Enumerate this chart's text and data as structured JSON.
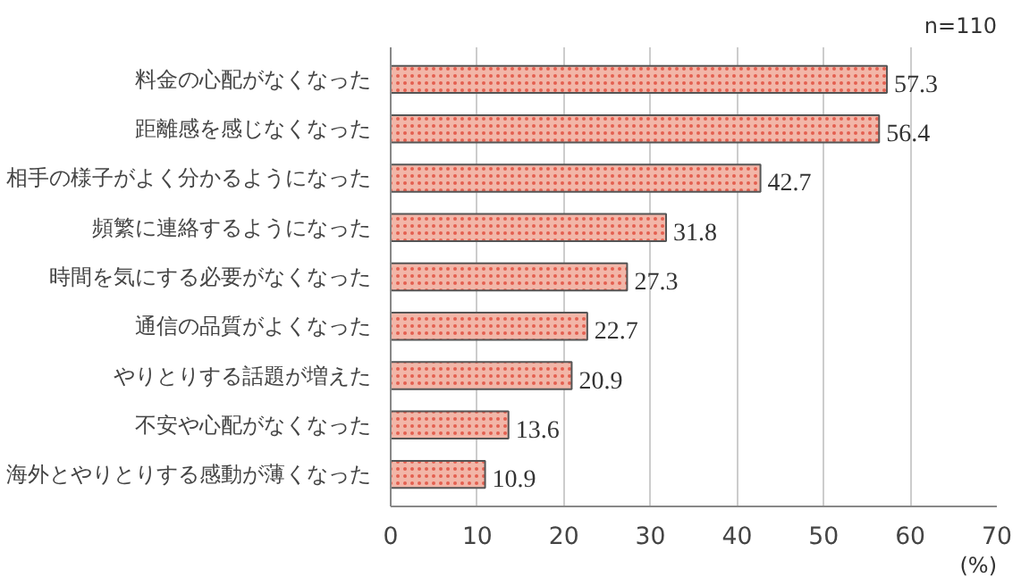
{
  "chart_data": {
    "type": "bar",
    "orientation": "horizontal",
    "categories": [
      "料金の心配がなくなった",
      "距離感を感じなくなった",
      "相手の様子がよく分かるようになった",
      "頻繁に連絡するようになった",
      "時間を気にする必要がなくなった",
      "通信の品質がよくなった",
      "やりとりする話題が増えた",
      "不安や心配がなくなった",
      "海外とやりとりする感動が薄くなった"
    ],
    "values": [
      57.3,
      56.4,
      42.7,
      31.8,
      27.3,
      22.7,
      20.9,
      13.6,
      10.9
    ],
    "color": "#f2b6a8",
    "data_labels": true,
    "xlim": [
      0,
      70
    ],
    "xticks": [
      0,
      10,
      20,
      30,
      40,
      50,
      60,
      70
    ],
    "xlabel": "(%)",
    "annotations": [
      "n=110"
    ],
    "grid": "x"
  }
}
